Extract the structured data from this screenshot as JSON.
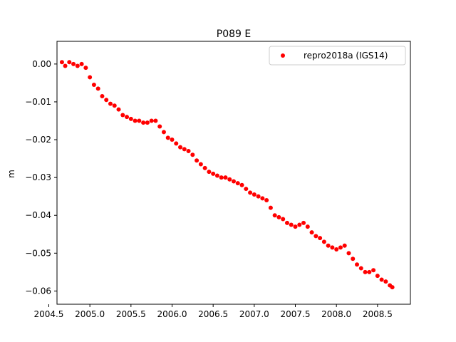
{
  "chart_data": {
    "type": "scatter",
    "title": "P089 E",
    "xlabel": "",
    "ylabel": "m",
    "xlim": [
      2004.6,
      2008.9
    ],
    "ylim": [
      -0.0635,
      0.006
    ],
    "xticks": [
      "2004.5",
      "2005.0",
      "2005.5",
      "2006.0",
      "2006.5",
      "2007.0",
      "2007.5",
      "2008.0",
      "2008.5"
    ],
    "yticks": [
      "0.00",
      "−0.01",
      "−0.02",
      "−0.03",
      "−0.04",
      "−0.05",
      "−0.06"
    ],
    "grid": false,
    "legend_position": "top-right",
    "series": [
      {
        "name": "repro2018a (IGS14)",
        "color": "#ff0000",
        "marker": "dot",
        "x": [
          2004.66,
          2004.7,
          2004.75,
          2004.8,
          2004.85,
          2004.9,
          2004.95,
          2005.0,
          2005.05,
          2005.1,
          2005.15,
          2005.2,
          2005.25,
          2005.3,
          2005.35,
          2005.4,
          2005.45,
          2005.5,
          2005.55,
          2005.6,
          2005.65,
          2005.7,
          2005.75,
          2005.8,
          2005.85,
          2005.9,
          2005.95,
          2006.0,
          2006.05,
          2006.1,
          2006.15,
          2006.2,
          2006.25,
          2006.3,
          2006.35,
          2006.4,
          2006.45,
          2006.5,
          2006.55,
          2006.6,
          2006.65,
          2006.7,
          2006.75,
          2006.8,
          2006.85,
          2006.9,
          2006.95,
          2007.0,
          2007.05,
          2007.1,
          2007.15,
          2007.2,
          2007.25,
          2007.3,
          2007.35,
          2007.4,
          2007.45,
          2007.5,
          2007.55,
          2007.6,
          2007.65,
          2007.7,
          2007.75,
          2007.8,
          2007.85,
          2007.9,
          2007.95,
          2008.0,
          2008.05,
          2008.1,
          2008.15,
          2008.2,
          2008.25,
          2008.3,
          2008.35,
          2008.4,
          2008.45,
          2008.5,
          2008.55,
          2008.6,
          2008.65,
          2008.68
        ],
        "y": [
          0.0005,
          -0.0005,
          0.0005,
          0.0,
          -0.0005,
          0.0,
          -0.001,
          -0.0035,
          -0.0055,
          -0.0065,
          -0.0085,
          -0.0095,
          -0.0105,
          -0.011,
          -0.012,
          -0.0135,
          -0.014,
          -0.0145,
          -0.015,
          -0.015,
          -0.0155,
          -0.0155,
          -0.015,
          -0.015,
          -0.0165,
          -0.018,
          -0.0195,
          -0.02,
          -0.021,
          -0.022,
          -0.0225,
          -0.023,
          -0.024,
          -0.0255,
          -0.0265,
          -0.0275,
          -0.0285,
          -0.029,
          -0.0295,
          -0.03,
          -0.03,
          -0.0305,
          -0.031,
          -0.0315,
          -0.032,
          -0.033,
          -0.034,
          -0.0345,
          -0.035,
          -0.0355,
          -0.036,
          -0.038,
          -0.04,
          -0.0405,
          -0.041,
          -0.042,
          -0.0425,
          -0.043,
          -0.0425,
          -0.042,
          -0.043,
          -0.0445,
          -0.0455,
          -0.046,
          -0.047,
          -0.048,
          -0.0485,
          -0.049,
          -0.0485,
          -0.048,
          -0.05,
          -0.0515,
          -0.053,
          -0.054,
          -0.055,
          -0.055,
          -0.0545,
          -0.056,
          -0.057,
          -0.0575,
          -0.0585,
          -0.059
        ]
      }
    ]
  }
}
